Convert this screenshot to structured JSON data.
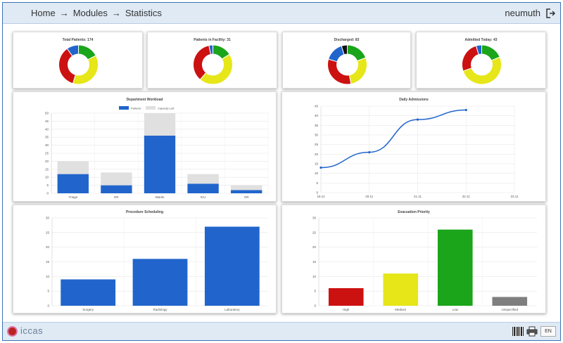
{
  "header": {
    "breadcrumb": [
      "Home",
      "Modules",
      "Statistics"
    ],
    "arrow": "→",
    "username": "neumuth",
    "logout_icon": "logout-icon"
  },
  "footer": {
    "logo_text": "iccas",
    "language": "EN",
    "barcode_icon": "barcode-icon",
    "print_icon": "printer-icon"
  },
  "colors": {
    "green": "#1aa51a",
    "yellow": "#e6e619",
    "red": "#cc1111",
    "blue": "#2165cc",
    "black": "#111111",
    "capacity": "#e0e0e0",
    "gray": "#7f7f7f"
  },
  "chart_data": [
    {
      "type": "pie",
      "title": "Total Patients: 174",
      "slices": [
        {
          "color": "#1aa51a",
          "value": 30
        },
        {
          "color": "#e6e619",
          "value": 65
        },
        {
          "color": "#cc1111",
          "value": 62
        },
        {
          "color": "#2165cc",
          "value": 17
        }
      ]
    },
    {
      "type": "pie",
      "title": "Patients in Facility: 31",
      "slices": [
        {
          "color": "#1aa51a",
          "value": 5
        },
        {
          "color": "#e6e619",
          "value": 14
        },
        {
          "color": "#cc1111",
          "value": 11
        },
        {
          "color": "#2165cc",
          "value": 1
        }
      ]
    },
    {
      "type": "pie",
      "title": "Discharged: 83",
      "slices": [
        {
          "color": "#1aa51a",
          "value": 16
        },
        {
          "color": "#e6e619",
          "value": 23
        },
        {
          "color": "#cc1111",
          "value": 27
        },
        {
          "color": "#2165cc",
          "value": 13
        },
        {
          "color": "#111111",
          "value": 4
        }
      ]
    },
    {
      "type": "pie",
      "title": "Admitted Today: 43",
      "slices": [
        {
          "color": "#1aa51a",
          "value": 8
        },
        {
          "color": "#e6e619",
          "value": 22
        },
        {
          "color": "#cc1111",
          "value": 11
        },
        {
          "color": "#2165cc",
          "value": 2
        }
      ]
    },
    {
      "type": "bar",
      "title": "Department Workload",
      "categories": [
        "Triage",
        "ER",
        "Wards",
        "ICU",
        "OR"
      ],
      "series": [
        {
          "name": "Patients",
          "values": [
            12,
            5,
            36,
            6,
            2
          ],
          "color": "#2165cc"
        },
        {
          "name": "Capacity Left",
          "values": [
            8,
            8,
            14,
            6,
            3
          ],
          "color": "#e0e0e0"
        }
      ],
      "stacked": true,
      "ylim": [
        0,
        50
      ],
      "yticks": [
        0,
        5,
        10,
        15,
        20,
        25,
        30,
        35,
        40,
        45,
        50
      ],
      "legend": "top"
    },
    {
      "type": "line",
      "title": "Daily Admissions",
      "x": [
        "18.11",
        "20.11",
        "21.11",
        "22.11"
      ],
      "xticks": [
        "18.11",
        "20.11",
        "21.11",
        "22.11",
        "23.11"
      ],
      "y": [
        13,
        21,
        38,
        43
      ],
      "ylim": [
        0,
        45
      ],
      "yticks": [
        0,
        5,
        10,
        15,
        20,
        25,
        30,
        35,
        40,
        45
      ],
      "color": "#2165cc"
    },
    {
      "type": "bar",
      "title": "Procedure Scheduling",
      "categories": [
        "Surgery",
        "Radiology",
        "Laboratory"
      ],
      "values": [
        9,
        16,
        27
      ],
      "colors": [
        "#2165cc",
        "#2165cc",
        "#2165cc"
      ],
      "ylim": [
        0,
        30
      ],
      "yticks": [
        0,
        5,
        10,
        15,
        20,
        25,
        30
      ]
    },
    {
      "type": "bar",
      "title": "Evacuation Priority",
      "categories": [
        "High",
        "Medium",
        "Low",
        "Unspecified"
      ],
      "values": [
        6,
        11,
        26,
        3
      ],
      "colors": [
        "#cc1111",
        "#e6e619",
        "#1aa51a",
        "#7f7f7f"
      ],
      "ylim": [
        0,
        30
      ],
      "yticks": [
        0,
        5,
        10,
        15,
        20,
        25,
        30
      ]
    }
  ]
}
